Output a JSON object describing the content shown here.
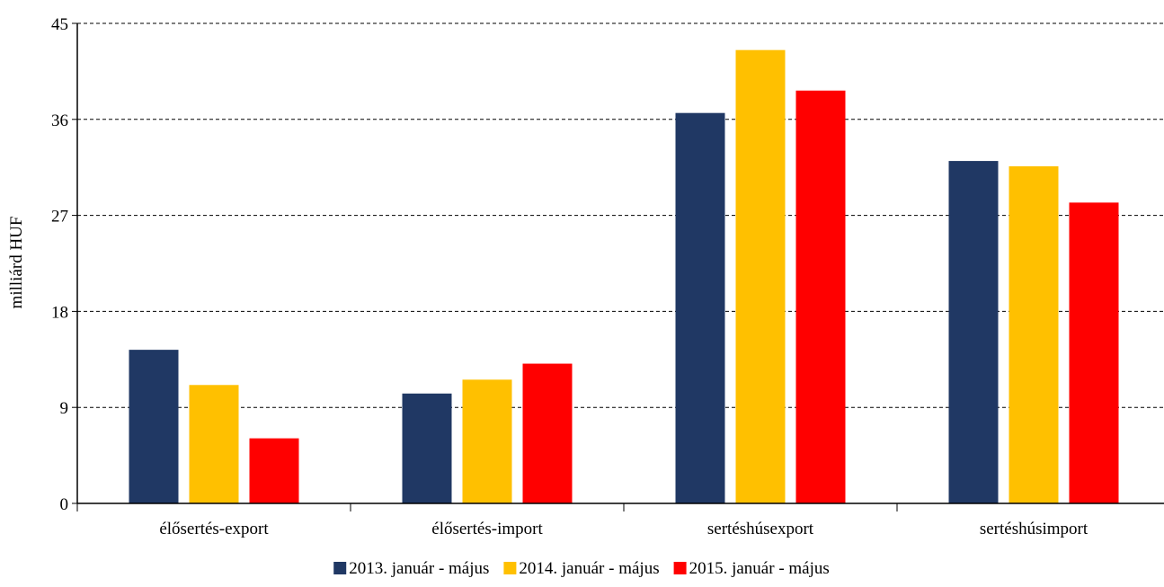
{
  "chart_data": {
    "type": "bar",
    "title": "",
    "xlabel": "",
    "ylabel": "milliárd HUF",
    "ylim": [
      0,
      45
    ],
    "yticks": [
      0,
      9,
      18,
      27,
      36,
      45
    ],
    "grid": "horizontal dashed",
    "legend_position": "bottom",
    "categories": [
      "élősertés-export",
      "élősertés-import",
      "sertéshúsexport",
      "sertéshúsimport"
    ],
    "series": [
      {
        "name": "2013. január - május",
        "color": "#203864",
        "values": [
          14.4,
          10.3,
          36.6,
          32.1
        ]
      },
      {
        "name": "2014. január - május",
        "color": "#FFC000",
        "values": [
          11.1,
          11.6,
          42.5,
          31.6
        ]
      },
      {
        "name": "2015. január - május",
        "color": "#FF0000",
        "values": [
          6.1,
          13.1,
          38.7,
          28.2
        ]
      }
    ]
  }
}
